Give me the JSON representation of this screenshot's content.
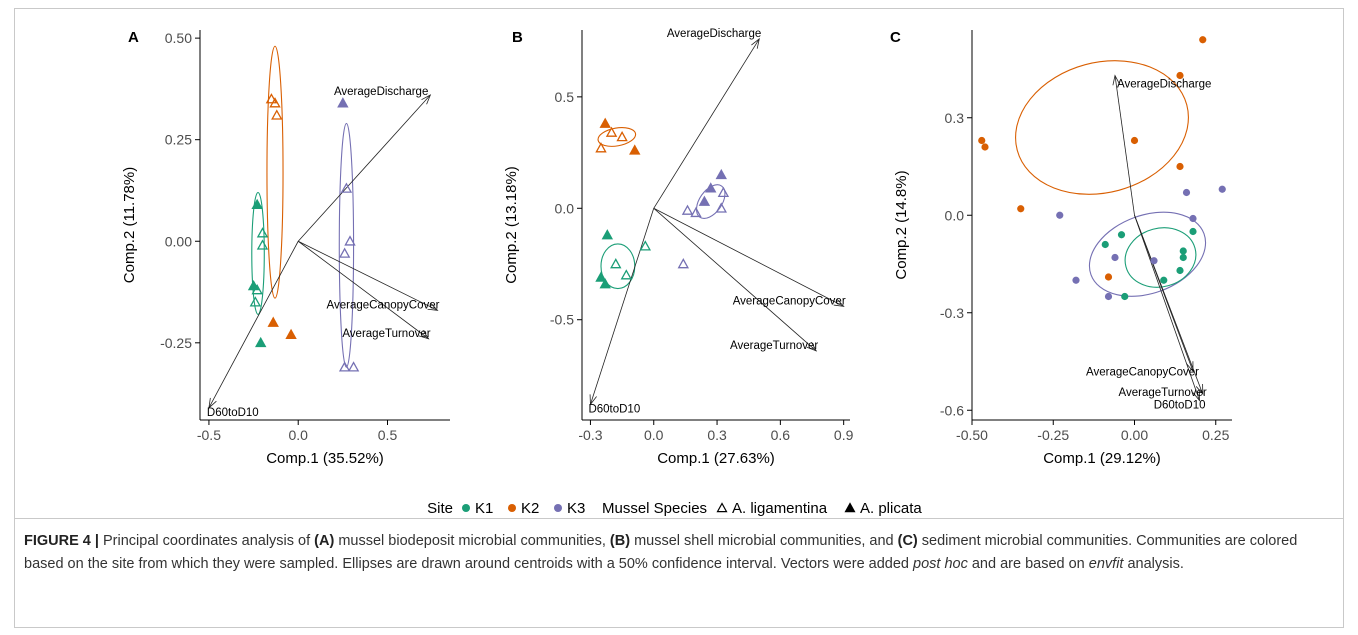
{
  "colors": {
    "K1": "#1b9e77",
    "K2": "#d95f02",
    "K3": "#7570b3"
  },
  "legend": {
    "site_title": "Site",
    "site_items": [
      "K1",
      "K2",
      "K3"
    ],
    "species_title": "Mussel Species",
    "species_items": [
      {
        "label": "A. ligamentina",
        "shape": "open-triangle"
      },
      {
        "label": "A. plicata",
        "shape": "filled-triangle"
      }
    ]
  },
  "caption": {
    "figure_label": "FIGURE 4 |",
    "t1": " Principal coordinates analysis of ",
    "a": "(A)",
    "t2": " mussel biodeposit microbial communities, ",
    "b": "(B)",
    "t3": " mussel shell microbial communities, and ",
    "c": "(C)",
    "t4": " sediment microbial communities. Communities are colored based on the site from which they were sampled. Ellipses are drawn around centroids with a 50% confidence interval. Vectors were added ",
    "post_hoc": "post hoc",
    "t5": " and are based on ",
    "envfit": "envfit",
    "t6": " analysis."
  },
  "chart_data": [
    {
      "type": "scatter",
      "panel": "A",
      "xlabel": "Comp.1 (35.52%)",
      "ylabel": "Comp.2 (11.78%)",
      "xlim": [
        -0.55,
        0.85
      ],
      "ylim": [
        -0.44,
        0.52
      ],
      "xticks": [
        -0.5,
        0.0,
        0.5
      ],
      "xtick_labels": [
        "-0.5",
        "0.0",
        "0.5"
      ],
      "yticks": [
        -0.25,
        0.0,
        0.25,
        0.5
      ],
      "ytick_labels": [
        "-0.25",
        "0.00",
        "0.25",
        "0.50"
      ],
      "grid": false,
      "points": [
        {
          "site": "K1",
          "species": "A. plicata",
          "x": -0.23,
          "y": 0.09
        },
        {
          "site": "K1",
          "species": "A. ligamentina",
          "x": -0.2,
          "y": 0.02
        },
        {
          "site": "K1",
          "species": "A. ligamentina",
          "x": -0.2,
          "y": -0.01
        },
        {
          "site": "K1",
          "species": "A. plicata",
          "x": -0.25,
          "y": -0.11
        },
        {
          "site": "K1",
          "species": "A. ligamentina",
          "x": -0.23,
          "y": -0.12
        },
        {
          "site": "K1",
          "species": "A. ligamentina",
          "x": -0.24,
          "y": -0.15
        },
        {
          "site": "K1",
          "species": "A. plicata",
          "x": -0.21,
          "y": -0.25
        },
        {
          "site": "K2",
          "species": "A. ligamentina",
          "x": -0.15,
          "y": 0.35
        },
        {
          "site": "K2",
          "species": "A. ligamentina",
          "x": -0.13,
          "y": 0.34
        },
        {
          "site": "K2",
          "species": "A. ligamentina",
          "x": -0.12,
          "y": 0.31
        },
        {
          "site": "K2",
          "species": "A. plicata",
          "x": -0.14,
          "y": -0.2
        },
        {
          "site": "K2",
          "species": "A. plicata",
          "x": -0.04,
          "y": -0.23
        },
        {
          "site": "K3",
          "species": "A. plicata",
          "x": 0.25,
          "y": 0.34
        },
        {
          "site": "K3",
          "species": "A. ligamentina",
          "x": 0.27,
          "y": 0.13
        },
        {
          "site": "K3",
          "species": "A. ligamentina",
          "x": 0.29,
          "y": 0.0
        },
        {
          "site": "K3",
          "species": "A. ligamentina",
          "x": 0.26,
          "y": -0.03
        },
        {
          "site": "K3",
          "species": "A. ligamentina",
          "x": 0.26,
          "y": -0.31
        },
        {
          "site": "K3",
          "species": "A. ligamentina",
          "x": 0.31,
          "y": -0.31
        }
      ],
      "ellipses": [
        {
          "site": "K1",
          "cx": -0.225,
          "cy": -0.03,
          "rx": 0.035,
          "ry": 0.15,
          "angle": -90
        },
        {
          "site": "K2",
          "cx": -0.13,
          "cy": 0.17,
          "rx": 0.045,
          "ry": 0.31,
          "angle": -90
        },
        {
          "site": "K3",
          "cx": 0.27,
          "cy": -0.01,
          "rx": 0.04,
          "ry": 0.3,
          "angle": -90
        }
      ],
      "vectors": [
        {
          "label": "AverageDischarge",
          "x": 0.74,
          "y": 0.36
        },
        {
          "label": "AverageCanopyCover",
          "x": 0.78,
          "y": -0.17
        },
        {
          "label": "AverageTurnover",
          "x": 0.73,
          "y": -0.24
        },
        {
          "label": "D60toD10",
          "x": -0.5,
          "y": -0.41
        }
      ]
    },
    {
      "type": "scatter",
      "panel": "B",
      "xlabel": "Comp.1 (27.63%)",
      "ylabel": "Comp.2 (13.18%)",
      "xlim": [
        -0.34,
        0.93
      ],
      "ylim": [
        -0.95,
        0.8
      ],
      "xticks": [
        -0.3,
        0.0,
        0.3,
        0.6,
        0.9
      ],
      "xtick_labels": [
        "-0.3",
        "0.0",
        "0.3",
        "0.6",
        "0.9"
      ],
      "yticks": [
        -0.5,
        0.0,
        0.5
      ],
      "ytick_labels": [
        "-0.5",
        "0.0",
        "0.5"
      ],
      "grid": false,
      "points": [
        {
          "site": "K2",
          "species": "A. plicata",
          "x": -0.23,
          "y": 0.38
        },
        {
          "site": "K2",
          "species": "A. ligamentina",
          "x": -0.2,
          "y": 0.34
        },
        {
          "site": "K2",
          "species": "A. ligamentina",
          "x": -0.15,
          "y": 0.32
        },
        {
          "site": "K2",
          "species": "A. ligamentina",
          "x": -0.25,
          "y": 0.27
        },
        {
          "site": "K2",
          "species": "A. plicata",
          "x": -0.09,
          "y": 0.26
        },
        {
          "site": "K1",
          "species": "A. plicata",
          "x": -0.22,
          "y": -0.12
        },
        {
          "site": "K1",
          "species": "A. ligamentina",
          "x": -0.04,
          "y": -0.17
        },
        {
          "site": "K1",
          "species": "A. ligamentina",
          "x": -0.18,
          "y": -0.25
        },
        {
          "site": "K1",
          "species": "A. ligamentina",
          "x": -0.13,
          "y": -0.3
        },
        {
          "site": "K1",
          "species": "A. plicata",
          "x": -0.25,
          "y": -0.31
        },
        {
          "site": "K1",
          "species": "A. plicata",
          "x": -0.23,
          "y": -0.34
        },
        {
          "site": "K3",
          "species": "A. ligamentina",
          "x": 0.14,
          "y": -0.25
        },
        {
          "site": "K3",
          "species": "A. plicata",
          "x": 0.32,
          "y": 0.15
        },
        {
          "site": "K3",
          "species": "A. plicata",
          "x": 0.27,
          "y": 0.09
        },
        {
          "site": "K3",
          "species": "A. ligamentina",
          "x": 0.33,
          "y": 0.07
        },
        {
          "site": "K3",
          "species": "A. plicata",
          "x": 0.24,
          "y": 0.03
        },
        {
          "site": "K3",
          "species": "A. ligamentina",
          "x": 0.32,
          "y": 0.0
        },
        {
          "site": "K3",
          "species": "A. ligamentina",
          "x": 0.16,
          "y": -0.01
        },
        {
          "site": "K3",
          "species": "A. ligamentina",
          "x": 0.2,
          "y": -0.02
        }
      ],
      "ellipses": [
        {
          "site": "K2",
          "cx": -0.175,
          "cy": 0.32,
          "rx": 0.09,
          "ry": 0.04,
          "angle": -10
        },
        {
          "site": "K1",
          "cx": -0.17,
          "cy": -0.26,
          "rx": 0.08,
          "ry": 0.1,
          "angle": 0
        },
        {
          "site": "K3",
          "cx": 0.27,
          "cy": 0.03,
          "rx": 0.09,
          "ry": 0.05,
          "angle": -55
        }
      ],
      "vectors": [
        {
          "label": "AverageDischarge",
          "x": 0.5,
          "y": 0.76
        },
        {
          "label": "AverageCanopyCover",
          "x": 0.9,
          "y": -0.44
        },
        {
          "label": "AverageTurnover",
          "x": 0.77,
          "y": -0.64
        },
        {
          "label": "D60toD10",
          "x": -0.3,
          "y": -0.88
        }
      ]
    },
    {
      "type": "scatter",
      "panel": "C",
      "xlabel": "Comp.1 (29.12%)",
      "ylabel": "Comp.2 (14.8%)",
      "xlim": [
        -0.5,
        0.3
      ],
      "ylim": [
        -0.63,
        0.57
      ],
      "xticks": [
        -0.5,
        -0.25,
        0.0,
        0.25
      ],
      "xtick_labels": [
        "-0.50",
        "-0.25",
        "0.00",
        "0.25"
      ],
      "yticks": [
        -0.6,
        -0.3,
        0.0,
        0.3
      ],
      "ytick_labels": [
        "-0.6",
        "-0.3",
        "0.0",
        "0.3"
      ],
      "grid": false,
      "points": [
        {
          "site": "K2",
          "species": "sediment",
          "x": 0.21,
          "y": 0.54
        },
        {
          "site": "K2",
          "species": "sediment",
          "x": 0.14,
          "y": 0.43
        },
        {
          "site": "K2",
          "species": "sediment",
          "x": -0.47,
          "y": 0.23
        },
        {
          "site": "K2",
          "species": "sediment",
          "x": -0.46,
          "y": 0.21
        },
        {
          "site": "K2",
          "species": "sediment",
          "x": 0.0,
          "y": 0.23
        },
        {
          "site": "K2",
          "species": "sediment",
          "x": 0.14,
          "y": 0.15
        },
        {
          "site": "K2",
          "species": "sediment",
          "x": -0.35,
          "y": 0.02
        },
        {
          "site": "K2",
          "species": "sediment",
          "x": -0.08,
          "y": -0.19
        },
        {
          "site": "K3",
          "species": "sediment",
          "x": 0.27,
          "y": 0.08
        },
        {
          "site": "K3",
          "species": "sediment",
          "x": 0.16,
          "y": 0.07
        },
        {
          "site": "K3",
          "species": "sediment",
          "x": -0.23,
          "y": 0.0
        },
        {
          "site": "K3",
          "species": "sediment",
          "x": 0.18,
          "y": -0.01
        },
        {
          "site": "K3",
          "species": "sediment",
          "x": -0.06,
          "y": -0.13
        },
        {
          "site": "K3",
          "species": "sediment",
          "x": 0.06,
          "y": -0.14
        },
        {
          "site": "K3",
          "species": "sediment",
          "x": -0.18,
          "y": -0.2
        },
        {
          "site": "K3",
          "species": "sediment",
          "x": -0.08,
          "y": -0.25
        },
        {
          "site": "K1",
          "species": "sediment",
          "x": 0.18,
          "y": -0.05
        },
        {
          "site": "K1",
          "species": "sediment",
          "x": -0.04,
          "y": -0.06
        },
        {
          "site": "K1",
          "species": "sediment",
          "x": -0.09,
          "y": -0.09
        },
        {
          "site": "K1",
          "species": "sediment",
          "x": 0.15,
          "y": -0.11
        },
        {
          "site": "K1",
          "species": "sediment",
          "x": 0.15,
          "y": -0.13
        },
        {
          "site": "K1",
          "species": "sediment",
          "x": 0.14,
          "y": -0.17
        },
        {
          "site": "K1",
          "species": "sediment",
          "x": 0.09,
          "y": -0.2
        },
        {
          "site": "K1",
          "species": "sediment",
          "x": -0.03,
          "y": -0.25
        }
      ],
      "ellipses": [
        {
          "site": "K2",
          "cx": -0.1,
          "cy": 0.27,
          "rx": 0.27,
          "ry": 0.2,
          "angle": -15
        },
        {
          "site": "K3",
          "cx": 0.04,
          "cy": -0.12,
          "rx": 0.185,
          "ry": 0.12,
          "angle": -20
        },
        {
          "site": "K1",
          "cx": 0.08,
          "cy": -0.13,
          "rx": 0.11,
          "ry": 0.09,
          "angle": -15
        }
      ],
      "vectors": [
        {
          "label": "AverageDischarge",
          "x": -0.06,
          "y": 0.43
        },
        {
          "label": "AverageCanopyCover",
          "x": 0.18,
          "y": -0.48
        },
        {
          "label": "AverageTurnover",
          "x": 0.21,
          "y": -0.55
        },
        {
          "label": "D60toD10",
          "x": 0.2,
          "y": -0.57
        }
      ]
    }
  ]
}
